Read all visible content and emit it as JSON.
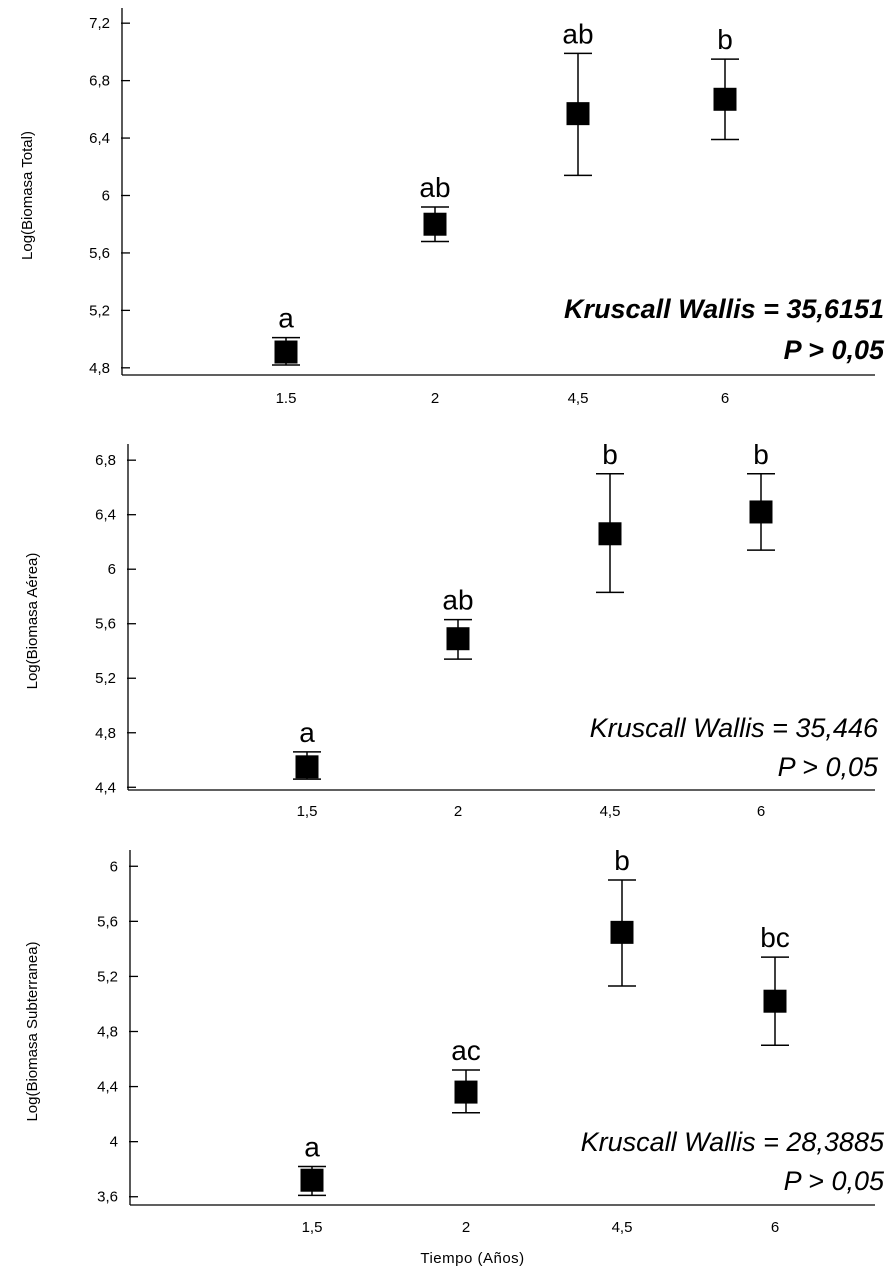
{
  "chart_data": [
    {
      "type": "scatter",
      "categories": [
        "1.5",
        "2",
        "4,5",
        "6"
      ],
      "ylabel": "Log(Biomasa Total)",
      "ylim": [
        4.75,
        7.25
      ],
      "yticks": [
        "4,8",
        "5,2",
        "5,6",
        "6",
        "6,4",
        "6,8",
        "7,2"
      ],
      "ytick_values": [
        4.8,
        5.2,
        5.6,
        6.0,
        6.4,
        6.8,
        7.2
      ],
      "values": [
        4.91,
        5.8,
        6.57,
        6.67
      ],
      "err_low": [
        4.82,
        5.68,
        6.14,
        6.39
      ],
      "err_high": [
        5.01,
        5.92,
        6.99,
        6.95
      ],
      "group_labels": [
        "a",
        "ab",
        "ab",
        "b"
      ],
      "stat_line1": "Kruscall Wallis = 35,6151",
      "stat_line2": "P > 0,05",
      "stat_bold": true
    },
    {
      "type": "scatter",
      "categories": [
        "1,5",
        "2",
        "4,5",
        "6"
      ],
      "ylabel": "Log(Biomasa Aérea)",
      "ylim": [
        4.38,
        6.86
      ],
      "yticks": [
        "4,4",
        "4,8",
        "5,2",
        "5,6",
        "6",
        "6,4",
        "6,8"
      ],
      "ytick_values": [
        4.4,
        4.8,
        5.2,
        5.6,
        6.0,
        6.4,
        6.8
      ],
      "values": [
        4.55,
        5.49,
        6.26,
        6.42
      ],
      "err_low": [
        4.46,
        5.34,
        5.83,
        6.14
      ],
      "err_high": [
        4.66,
        5.63,
        6.7,
        6.7
      ],
      "group_labels": [
        "a",
        "ab",
        "b",
        "b"
      ],
      "stat_line1": "Kruscall Wallis = 35,446",
      "stat_line2": "P > 0,05",
      "stat_bold": false
    },
    {
      "type": "scatter",
      "categories": [
        "1,5",
        "2",
        "4,5",
        "6"
      ],
      "xlabel": "Tiempo (Años)",
      "ylabel": "Log(Biomasa Subterranea)",
      "ylim": [
        3.54,
        6.06
      ],
      "yticks": [
        "3,6",
        "4",
        "4,4",
        "4,8",
        "5,2",
        "5,6",
        "6"
      ],
      "ytick_values": [
        3.6,
        4.0,
        4.4,
        4.8,
        5.2,
        5.6,
        6.0
      ],
      "values": [
        3.72,
        4.36,
        5.52,
        5.02
      ],
      "err_low": [
        3.61,
        4.21,
        5.13,
        4.7
      ],
      "err_high": [
        3.82,
        4.52,
        5.9,
        5.34
      ],
      "group_labels": [
        "a",
        "ac",
        "b",
        "bc"
      ],
      "stat_line1": "Kruscall Wallis = 28,3885",
      "stat_line2": "P > 0,05",
      "stat_bold": false
    }
  ]
}
